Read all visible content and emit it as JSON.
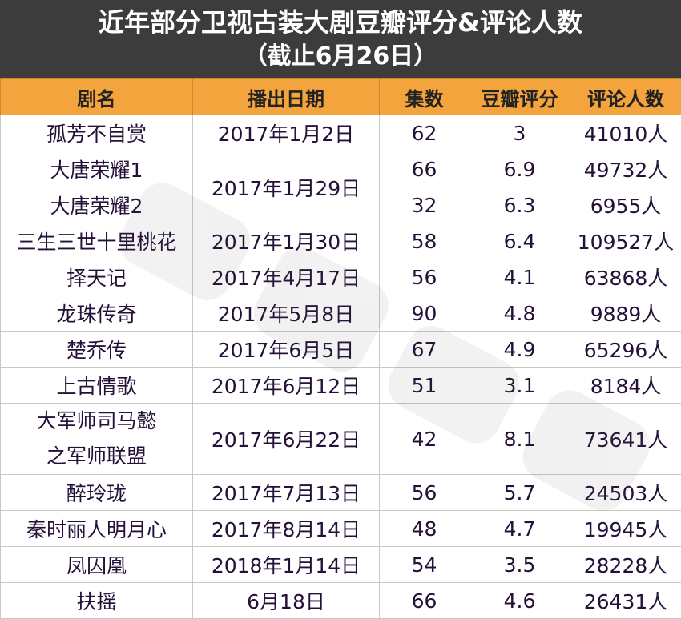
{
  "title": {
    "line1": "近年部分卫视古装大剧豆瓣评分&评论人数",
    "line2": "（截止6月26日）"
  },
  "table": {
    "headers": [
      "剧名",
      "播出日期",
      "集数",
      "豆瓣评分",
      "评论人数"
    ],
    "rows": [
      {
        "name": "孤芳不自赏",
        "date": "2017年1月2日",
        "episodes": "62",
        "score": "3",
        "reviews": "41010人"
      },
      {
        "name": "大唐荣耀1",
        "date": "2017年1月29日",
        "episodes": "66",
        "score": "6.9",
        "reviews": "49732人"
      },
      {
        "name": "大唐荣耀2",
        "episodes": "32",
        "score": "6.3",
        "reviews": "6955人"
      },
      {
        "name": "三生三世十里桃花",
        "date": "2017年1月30日",
        "episodes": "58",
        "score": "6.4",
        "reviews": "109527人"
      },
      {
        "name": "择天记",
        "date": "2017年4月17日",
        "episodes": "56",
        "score": "4.1",
        "reviews": "63868人"
      },
      {
        "name": "龙珠传奇",
        "date": "2017年5月8日",
        "episodes": "90",
        "score": "4.8",
        "reviews": "9889人"
      },
      {
        "name": "楚乔传",
        "date": "2017年6月5日",
        "episodes": "67",
        "score": "4.9",
        "reviews": "65296人"
      },
      {
        "name": "上古情歌",
        "date": "2017年6月12日",
        "episodes": "51",
        "score": "3.1",
        "reviews": "8184人"
      },
      {
        "name_line1": "大军师司马懿",
        "name_line2": "之军师联盟",
        "date": "2017年6月22日",
        "episodes": "42",
        "score": "8.1",
        "reviews": "73641人"
      },
      {
        "name": "醉玲珑",
        "date": "2017年7月13日",
        "episodes": "56",
        "score": "5.7",
        "reviews": "24503人"
      },
      {
        "name": "秦时丽人明月心",
        "date": "2017年8月14日",
        "episodes": "48",
        "score": "4.7",
        "reviews": "19945人"
      },
      {
        "name": "凤囚凰",
        "date": "2018年1月14日",
        "episodes": "54",
        "score": "3.5",
        "reviews": "28228人"
      },
      {
        "name": "扶摇",
        "date": "6月18日",
        "episodes": "66",
        "score": "4.6",
        "reviews": "26431人"
      }
    ]
  }
}
